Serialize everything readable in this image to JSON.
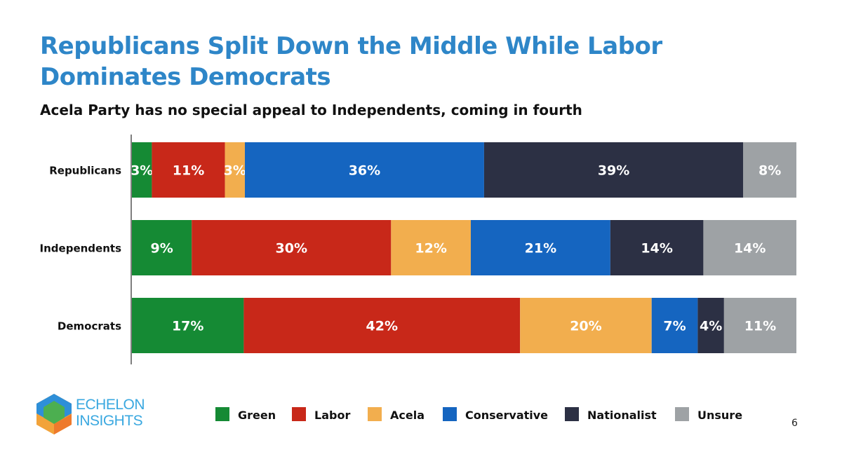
{
  "slide": {
    "title": "Republicans Split Down the Middle While Labor Dominates Democrats",
    "subtitle": "Acela Party has no special appeal to Independents, coming in fourth",
    "page_number": "6",
    "logo": {
      "line1": "ECHELON",
      "line2": "INSIGHTS"
    }
  },
  "chart_data": {
    "type": "bar",
    "orientation": "horizontal-stacked-100",
    "categories": [
      "Republicans",
      "Independents",
      "Democrats"
    ],
    "series": [
      {
        "name": "Green",
        "color": "#158a34",
        "values": [
          3,
          9,
          17
        ]
      },
      {
        "name": "Labor",
        "color": "#c82819",
        "values": [
          11,
          30,
          42
        ]
      },
      {
        "name": "Acela",
        "color": "#f2ae4e",
        "values": [
          3,
          12,
          20
        ]
      },
      {
        "name": "Conservative",
        "color": "#1565c0",
        "values": [
          36,
          21,
          7
        ]
      },
      {
        "name": "Nationalist",
        "color": "#2c3044",
        "values": [
          39,
          14,
          4
        ]
      },
      {
        "name": "Unsure",
        "color": "#9ea2a5",
        "values": [
          8,
          14,
          11
        ]
      }
    ],
    "legend_position": "bottom",
    "grid": false,
    "value_suffix": "%"
  }
}
